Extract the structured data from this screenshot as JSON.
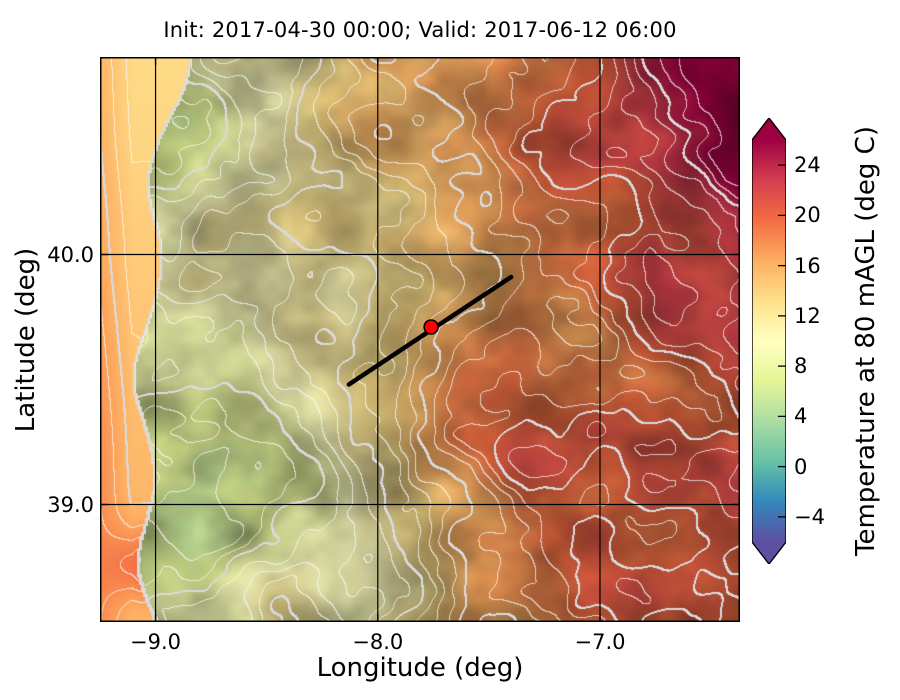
{
  "chart_data": {
    "type": "heatmap",
    "title": "Init: 2017-04-30 00:00; Valid: 2017-06-12 06:00",
    "xlabel": "Longitude (deg)",
    "ylabel": "Latitude (deg)",
    "xlim": [
      -9.25,
      -6.37
    ],
    "ylim": [
      38.53,
      40.79
    ],
    "xticks": [
      -9.0,
      -8.0,
      -7.0
    ],
    "xtick_labels": [
      "−9.0",
      "−8.0",
      "−7.0"
    ],
    "yticks": [
      40.0,
      39.0
    ],
    "ytick_labels": [
      "40.0",
      "39.0"
    ],
    "grid": true,
    "field": "Temperature at 80 mAGL",
    "units": "deg C",
    "colorbar": {
      "label": "Temperature at 80 mAGL (deg C)",
      "ticks": [
        24,
        20,
        16,
        12,
        8,
        4,
        0,
        -4
      ],
      "tick_labels": [
        "24",
        "20",
        "16",
        "12",
        "8",
        "4",
        "0",
        "−4"
      ],
      "vmin": -6,
      "vmax": 26,
      "extend": "both",
      "colormap": "Spectral_r",
      "colormap_stops": [
        {
          "t": 0.0,
          "color": "#5e4fa2"
        },
        {
          "t": 0.1,
          "color": "#3288bd"
        },
        {
          "t": 0.2,
          "color": "#66c2a5"
        },
        {
          "t": 0.3,
          "color": "#abdda4"
        },
        {
          "t": 0.4,
          "color": "#e6f598"
        },
        {
          "t": 0.5,
          "color": "#ffffbf"
        },
        {
          "t": 0.6,
          "color": "#fee08b"
        },
        {
          "t": 0.7,
          "color": "#fdae61"
        },
        {
          "t": 0.8,
          "color": "#f46d43"
        },
        {
          "t": 0.9,
          "color": "#d53e4f"
        },
        {
          "t": 1.0,
          "color": "#9e0142"
        }
      ]
    },
    "overlays": {
      "transect_line": {
        "lon": [
          -8.13,
          -7.4
        ],
        "lat": [
          39.48,
          39.91
        ],
        "color": "#000000"
      },
      "station_marker": {
        "lon": -7.76,
        "lat": 39.71,
        "color": "#ff0000"
      }
    }
  }
}
